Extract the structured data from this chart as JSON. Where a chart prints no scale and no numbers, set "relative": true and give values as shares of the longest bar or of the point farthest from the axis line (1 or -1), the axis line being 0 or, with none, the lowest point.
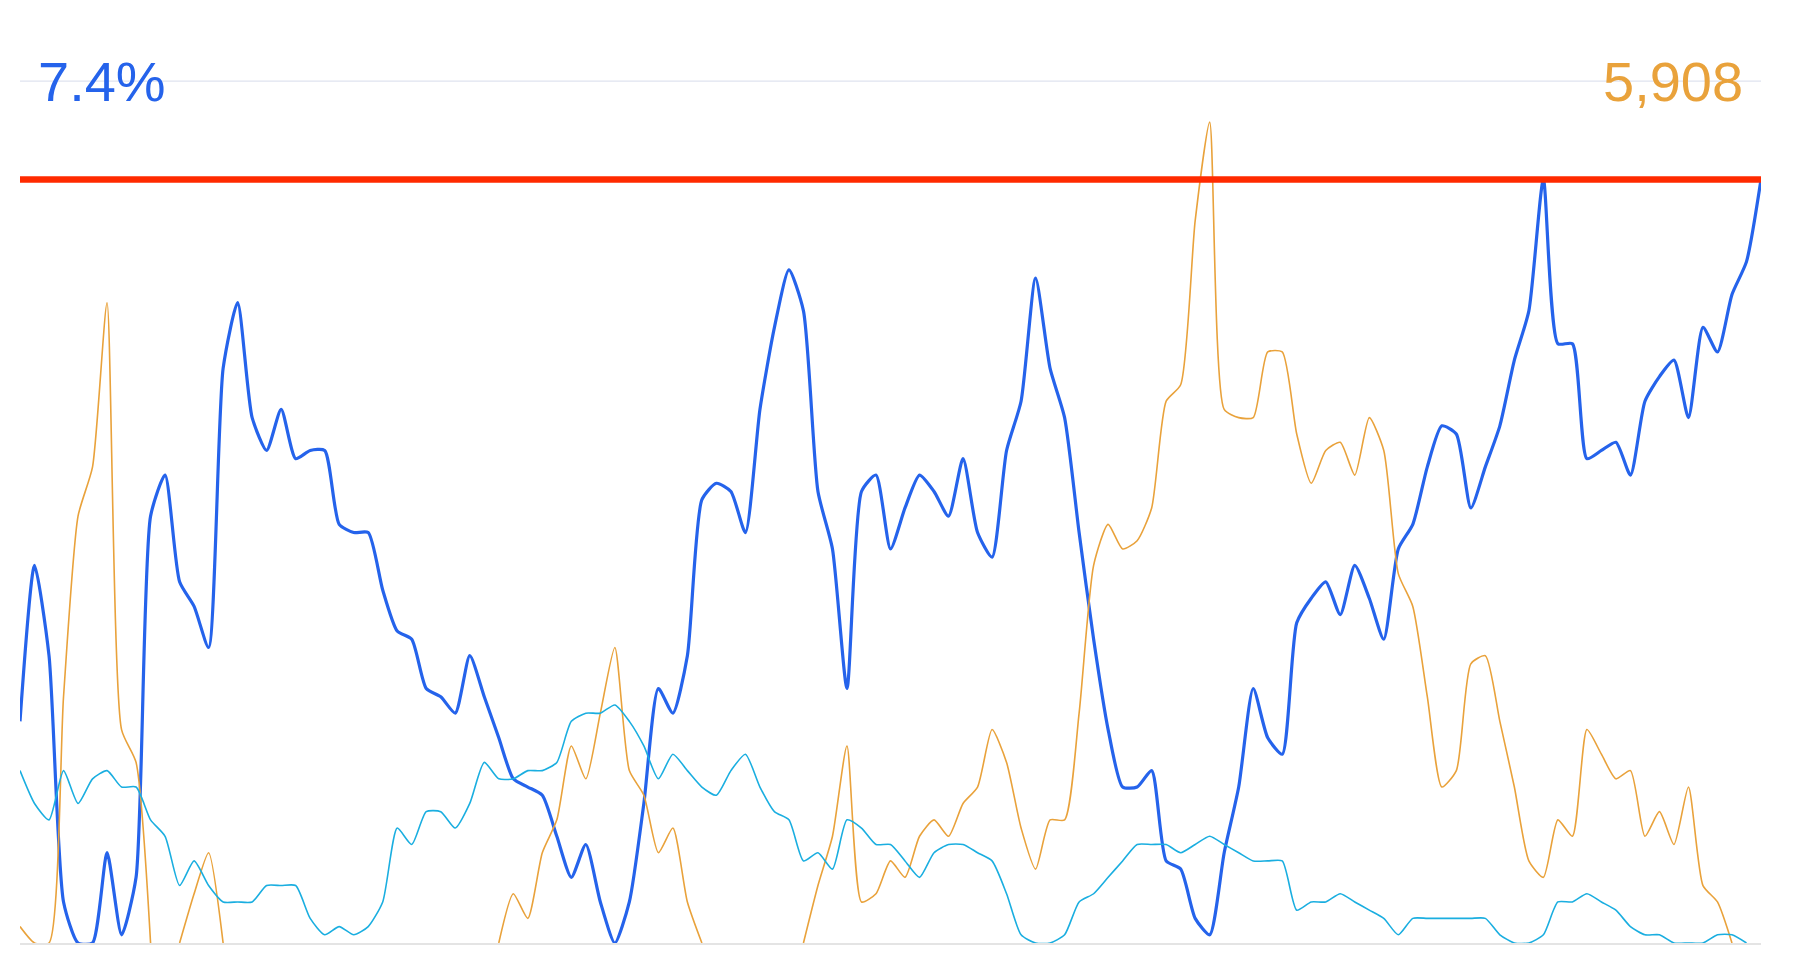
{
  "chart_data": {
    "type": "line",
    "relative": true,
    "categories": [
      null,
      null,
      null,
      null,
      null,
      null,
      null,
      null,
      null,
      null,
      null,
      null,
      null,
      null,
      null,
      null,
      null,
      null,
      null,
      null,
      null,
      null,
      null,
      null,
      null,
      null,
      null,
      null,
      null,
      null,
      null,
      null,
      null,
      null,
      null,
      null,
      null,
      null,
      null,
      null,
      null,
      null,
      null,
      null,
      null,
      null,
      null,
      null,
      null,
      null,
      null,
      null,
      null,
      null,
      null,
      null,
      null,
      null,
      null,
      null,
      null,
      null,
      null,
      null,
      null,
      null,
      null,
      null,
      null,
      null,
      null,
      null,
      null,
      null,
      null,
      null,
      null,
      null,
      null,
      null,
      null,
      null,
      null,
      null,
      null,
      null,
      null,
      null,
      null,
      null,
      null,
      null,
      null,
      null,
      null,
      null,
      null,
      null,
      null,
      null,
      null,
      null,
      null,
      null,
      null,
      null,
      null,
      null,
      null,
      null,
      null,
      null,
      null,
      null,
      null,
      null,
      null,
      null,
      null,
      null,
      null
    ],
    "series": [
      {
        "color": "#2563eb",
        "values": [
          0.27,
          0.46,
          0.35,
          0.05,
          0,
          0,
          0.11,
          0.01,
          0.08,
          0.52,
          0.57,
          0.44,
          0.41,
          0.36,
          0.7,
          0.78,
          0.64,
          0.6,
          0.65,
          0.59,
          0.6,
          0.6,
          0.51,
          0.5,
          0.5,
          0.43,
          0.38,
          0.37,
          0.31,
          0.3,
          0.28,
          0.35,
          0.3,
          0.25,
          0.2,
          0.19,
          0.18,
          0.13,
          0.08,
          0.12,
          0.05,
          0,
          0.05,
          0.17,
          0.31,
          0.28,
          0.35,
          0.54,
          0.56,
          0.55,
          0.5,
          0.65,
          0.75,
          0.82,
          0.77,
          0.55,
          0.48,
          0.31,
          0.55,
          0.57,
          0.48,
          0.53,
          0.57,
          0.55,
          0.52,
          0.59,
          0.5,
          0.47,
          0.6,
          0.66,
          0.81,
          0.7,
          0.64,
          0.5,
          0.37,
          0.26,
          0.19,
          0.19,
          0.21,
          0.1,
          0.09,
          0.03,
          0.01,
          0.11,
          0.19,
          0.31,
          0.25,
          0.23,
          0.39,
          0.42,
          0.44,
          0.4,
          0.46,
          0.42,
          0.37,
          0.48,
          0.51,
          0.58,
          0.63,
          0.62,
          0.53,
          0.58,
          0.63,
          0.71,
          0.77,
          0.93,
          0.73,
          0.73,
          0.59,
          0.6,
          0.61,
          0.57,
          0.66,
          0.69,
          0.71,
          0.64,
          0.75,
          0.72,
          0.79,
          0.83,
          0.93
        ]
      },
      {
        "color": "#e9a23b",
        "values": [
          0.02,
          0,
          0,
          0.3,
          0.52,
          0.58,
          0.78,
          0.26,
          0.22,
          0,
          null,
          0,
          0.06,
          0.11,
          0,
          null,
          null,
          null,
          null,
          null,
          null,
          null,
          null,
          null,
          null,
          null,
          null,
          null,
          null,
          null,
          null,
          null,
          null,
          0,
          0.06,
          0.03,
          0.11,
          0.15,
          0.24,
          0.2,
          0.28,
          0.36,
          0.21,
          0.18,
          0.11,
          0.14,
          0.05,
          0,
          null,
          null,
          null,
          null,
          null,
          null,
          0,
          0.07,
          0.13,
          0.24,
          0.05,
          0.06,
          0.1,
          0.08,
          0.13,
          0.15,
          0.13,
          0.17,
          0.19,
          0.26,
          0.22,
          0.14,
          0.09,
          0.15,
          0.15,
          0.28,
          0.46,
          0.51,
          0.48,
          0.49,
          0.53,
          0.66,
          0.68,
          0.88,
          1.0,
          0.65,
          0.64,
          0.64,
          0.72,
          0.72,
          0.62,
          0.56,
          0.6,
          0.61,
          0.57,
          0.64,
          0.6,
          0.45,
          0.41,
          0.3,
          0.19,
          0.21,
          0.34,
          0.35,
          0.27,
          0.19,
          0.1,
          0.08,
          0.15,
          0.13,
          0.26,
          0.23,
          0.2,
          0.21,
          0.13,
          0.16,
          0.12,
          0.19,
          0.07,
          0.05,
          0,
          null,
          null
        ]
      },
      {
        "color": "#1aaee0",
        "values": [
          0.21,
          0.17,
          0.15,
          0.21,
          0.17,
          0.2,
          0.21,
          0.19,
          0.19,
          0.15,
          0.13,
          0.07,
          0.1,
          0.07,
          0.05,
          0.05,
          0.05,
          0.07,
          0.07,
          0.07,
          0.03,
          0.01,
          0.02,
          0.01,
          0.02,
          0.05,
          0.14,
          0.12,
          0.16,
          0.16,
          0.14,
          0.17,
          0.22,
          0.2,
          0.2,
          0.21,
          0.21,
          0.22,
          0.27,
          0.28,
          0.28,
          0.29,
          0.27,
          0.24,
          0.2,
          0.23,
          0.21,
          0.19,
          0.18,
          0.21,
          0.23,
          0.19,
          0.16,
          0.15,
          0.1,
          0.11,
          0.09,
          0.15,
          0.14,
          0.12,
          0.12,
          0.1,
          0.08,
          0.11,
          0.12,
          0.12,
          0.11,
          0.1,
          0.06,
          0.01,
          0,
          0,
          0.01,
          0.05,
          0.06,
          0.08,
          0.1,
          0.12,
          0.12,
          0.12,
          0.11,
          0.12,
          0.13,
          0.12,
          0.11,
          0.1,
          0.1,
          0.1,
          0.04,
          0.05,
          0.05,
          0.06,
          0.05,
          0.04,
          0.03,
          0.01,
          0.03,
          0.03,
          0.03,
          0.03,
          0.03,
          0.03,
          0.01,
          0,
          0,
          0.01,
          0.05,
          0.05,
          0.06,
          0.05,
          0.04,
          0.02,
          0.01,
          0.01,
          0,
          0,
          0,
          0.01,
          0.01,
          0,
          null
        ]
      }
    ],
    "ref_lines": [
      {
        "axis": "y",
        "value": 1.05,
        "color": "#dfe3ef"
      },
      {
        "axis": "y",
        "value": 0.93,
        "color": "#ff2a00"
      }
    ],
    "annotations": [
      "7.4%",
      "5,908"
    ]
  }
}
